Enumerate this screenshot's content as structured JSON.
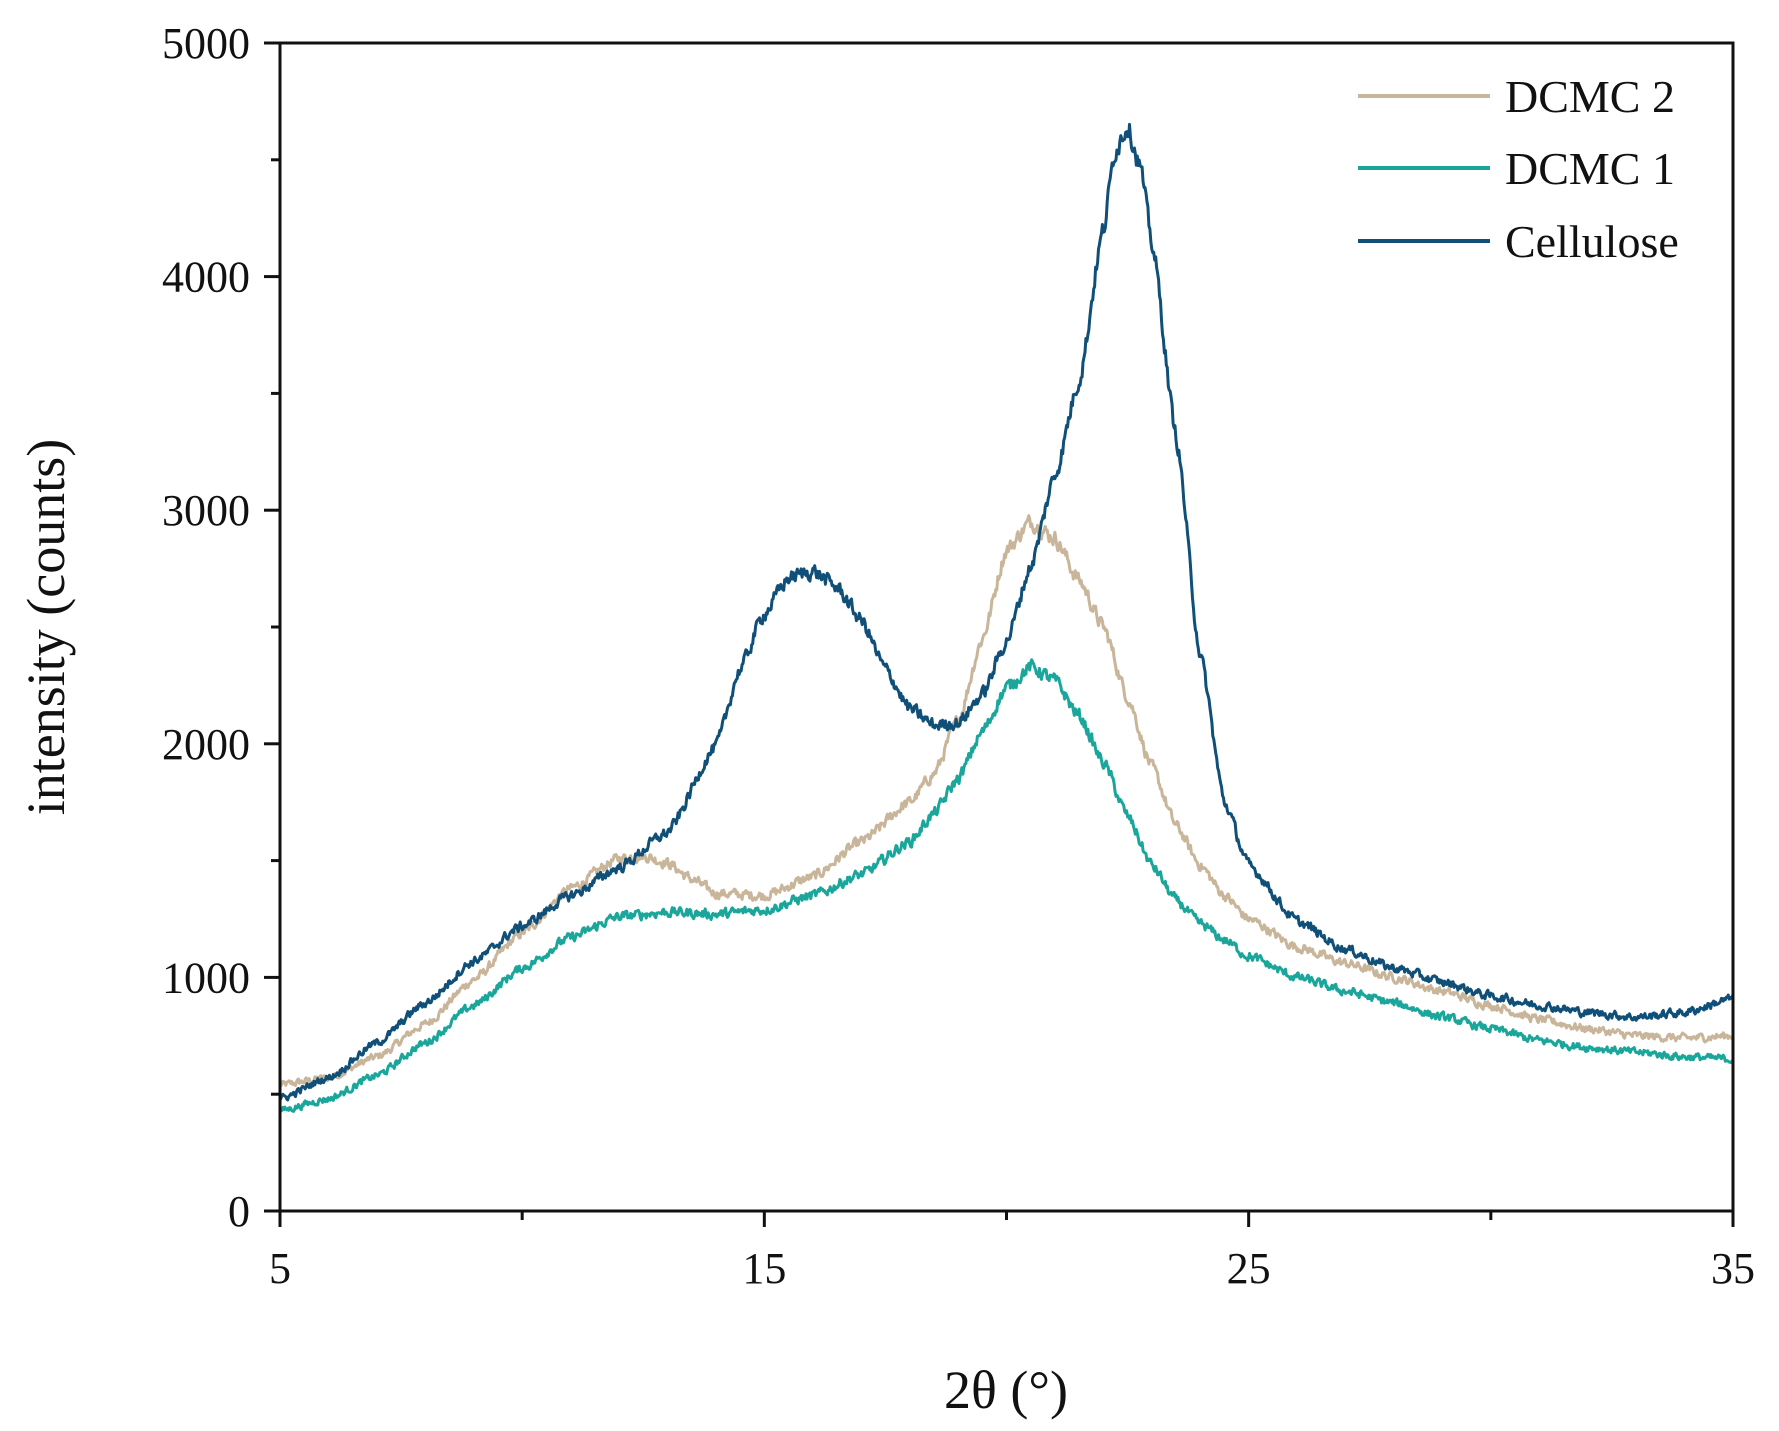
{
  "chart_data": {
    "type": "line",
    "title": "",
    "xlabel": "2θ (°)",
    "ylabel": "intensity (counts)",
    "xlim": [
      5,
      35
    ],
    "ylim": [
      0,
      5000
    ],
    "x_major_ticks": [
      5,
      15,
      25,
      35
    ],
    "x_minor_ticks": [
      10,
      20,
      30
    ],
    "y_major_ticks": [
      0,
      1000,
      2000,
      3000,
      4000,
      5000
    ],
    "y_minor_ticks": [
      500,
      1500,
      2500,
      3500,
      4500
    ],
    "x_tick_labels": [
      "5",
      "15",
      "25",
      "35"
    ],
    "y_tick_labels": [
      "0",
      "1000",
      "2000",
      "3000",
      "4000",
      "5000"
    ],
    "legend_position": "top-right",
    "grid": false,
    "series": [
      {
        "name": "DCMC 2",
        "color": "#c9b59a",
        "x": [
          5,
          6,
          7,
          8,
          9,
          10,
          11,
          12,
          12.5,
          13,
          13.5,
          14,
          15,
          16,
          17,
          18,
          18.5,
          19,
          19.5,
          20,
          20.5,
          21,
          21.5,
          22,
          22.5,
          23,
          23.5,
          24,
          24.5,
          25,
          26,
          27,
          28,
          29,
          30,
          31,
          32,
          33,
          34,
          35
        ],
        "y": [
          540,
          570,
          660,
          800,
          990,
          1190,
          1380,
          1510,
          1520,
          1490,
          1420,
          1360,
          1350,
          1430,
          1580,
          1750,
          1870,
          2100,
          2450,
          2830,
          2950,
          2880,
          2700,
          2500,
          2200,
          1900,
          1650,
          1480,
          1350,
          1250,
          1130,
          1060,
          1000,
          940,
          880,
          820,
          780,
          750,
          740,
          750
        ]
      },
      {
        "name": "DCMC 1",
        "color": "#1aa69a",
        "x": [
          5,
          6,
          7,
          8,
          9,
          10,
          11,
          12,
          13,
          14,
          15,
          16,
          17,
          18,
          18.5,
          19,
          19.5,
          20,
          20.5,
          21,
          21.5,
          22,
          22.5,
          23,
          23.5,
          24,
          24.5,
          25,
          26,
          27,
          28,
          29,
          30,
          31,
          32,
          33,
          34,
          35
        ],
        "y": [
          430,
          480,
          580,
          720,
          880,
          1040,
          1170,
          1260,
          1280,
          1270,
          1290,
          1350,
          1440,
          1580,
          1700,
          1850,
          2050,
          2240,
          2330,
          2270,
          2120,
          1920,
          1690,
          1480,
          1330,
          1230,
          1160,
          1090,
          1000,
          940,
          890,
          830,
          780,
          730,
          700,
          680,
          660,
          650
        ]
      },
      {
        "name": "Cellulose",
        "color": "#0f4f78",
        "x": [
          5,
          6,
          7,
          8,
          9,
          10,
          11,
          12,
          13,
          14,
          14.5,
          15,
          15.5,
          16,
          16.5,
          17,
          17.5,
          18,
          18.5,
          19,
          19.5,
          20,
          20.5,
          21,
          21.5,
          22,
          22.25,
          22.5,
          22.75,
          23,
          23.5,
          24,
          24.5,
          25,
          26,
          27,
          28,
          29,
          30,
          31,
          32,
          33,
          34,
          35
        ],
        "y": [
          480,
          570,
          720,
          890,
          1070,
          1220,
          1350,
          1470,
          1620,
          1990,
          2320,
          2560,
          2710,
          2740,
          2670,
          2530,
          2320,
          2150,
          2080,
          2090,
          2210,
          2440,
          2760,
          3150,
          3560,
          4200,
          4550,
          4650,
          4480,
          4150,
          3320,
          2380,
          1750,
          1480,
          1240,
          1120,
          1040,
          980,
          920,
          880,
          850,
          830,
          850,
          910
        ]
      }
    ]
  }
}
